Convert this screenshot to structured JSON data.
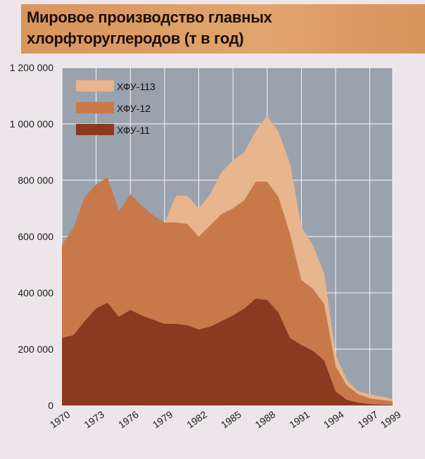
{
  "chart_data": {
    "type": "area",
    "stacked": true,
    "title": "Мировое производство главных хлорфторуглеродов (т в год)",
    "title_lines": [
      "Мировое производство главных",
      "хлорфторуглеродов (т в год)"
    ],
    "x": [
      1970,
      1971,
      1972,
      1973,
      1974,
      1975,
      1976,
      1977,
      1978,
      1979,
      1980,
      1981,
      1982,
      1983,
      1984,
      1985,
      1986,
      1987,
      1988,
      1989,
      1990,
      1991,
      1992,
      1993,
      1994,
      1995,
      1996,
      1997,
      1998,
      1999
    ],
    "x_ticks": [
      "1970",
      "1973",
      "1976",
      "1979",
      "1982",
      "1985",
      "1988",
      "1991",
      "1994",
      "1997",
      "1999"
    ],
    "x_tick_values": [
      1970,
      1973,
      1976,
      1979,
      1982,
      1985,
      1988,
      1991,
      1994,
      1997,
      1999
    ],
    "y_ticks": [
      "0",
      "200 000",
      "400 000",
      "600 000",
      "800 000",
      "1 000 000",
      "1 200 000"
    ],
    "y_tick_values": [
      0,
      200000,
      400000,
      600000,
      800000,
      1000000,
      1200000
    ],
    "ylim": [
      0,
      1200000
    ],
    "grid": true,
    "legend_position": "top-left",
    "series": [
      {
        "name": "ХФУ-11",
        "color": "#8a3a1e",
        "values": [
          240000,
          250000,
          300000,
          345000,
          365000,
          315000,
          340000,
          320000,
          305000,
          290000,
          290000,
          285000,
          270000,
          280000,
          300000,
          320000,
          345000,
          380000,
          375000,
          330000,
          240000,
          215000,
          195000,
          160000,
          50000,
          20000,
          10000,
          5000,
          3000,
          2000
        ]
      },
      {
        "name": "ХФУ-12",
        "color": "#c8794a",
        "values": [
          330000,
          380000,
          440000,
          440000,
          445000,
          375000,
          410000,
          390000,
          370000,
          360000,
          360000,
          360000,
          330000,
          360000,
          380000,
          380000,
          385000,
          415000,
          420000,
          410000,
          370000,
          230000,
          220000,
          200000,
          90000,
          50000,
          30000,
          20000,
          17000,
          13000
        ]
      },
      {
        "name": "ХФУ-113",
        "color": "#e8b58c",
        "values": [
          0,
          0,
          0,
          0,
          0,
          0,
          0,
          0,
          0,
          0,
          95000,
          100000,
          100000,
          110000,
          150000,
          170000,
          170000,
          180000,
          235000,
          230000,
          250000,
          190000,
          155000,
          110000,
          40000,
          20000,
          10000,
          15000,
          12000,
          8000
        ]
      }
    ]
  }
}
